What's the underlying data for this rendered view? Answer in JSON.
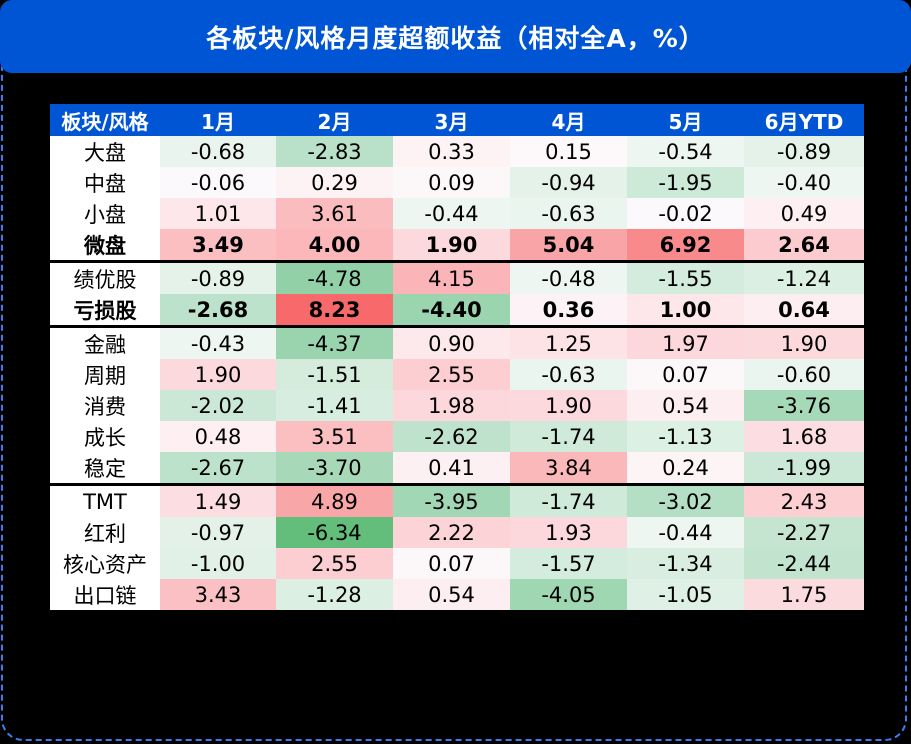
{
  "title": "各板块/风格月度超额收益（相对全A，%）",
  "table": {
    "headers": [
      "板块/风格",
      "1月",
      "2月",
      "3月",
      "4月",
      "5月",
      "6月YTD"
    ],
    "rows": [
      {
        "label": "大盘",
        "values": [
          "-0.68",
          "-2.83",
          "0.33",
          "0.15",
          "-0.54",
          "-0.89"
        ],
        "bold": false,
        "sep": false,
        "colors": [
          "#eaf4ef",
          "#b9e0c8",
          "#fdf3f5",
          "#fdf8fa",
          "#edf6f1",
          "#e5f2ea"
        ]
      },
      {
        "label": "中盘",
        "values": [
          "-0.06",
          "0.29",
          "0.09",
          "-0.94",
          "-1.95",
          "-0.40"
        ],
        "bold": false,
        "sep": false,
        "colors": [
          "#fbf9fb",
          "#fdf3f5",
          "#fcf8fa",
          "#e5f2ea",
          "#cde9d8",
          "#eef6f2"
        ]
      },
      {
        "label": "小盘",
        "values": [
          "1.01",
          "3.61",
          "-0.44",
          "-0.63",
          "-0.02",
          "0.49"
        ],
        "bold": false,
        "sep": false,
        "colors": [
          "#fde7ea",
          "#fbbcbf",
          "#eef6f2",
          "#ebf5ef",
          "#fbf9fb",
          "#fdeff2"
        ]
      },
      {
        "label": "微盘",
        "values": [
          "3.49",
          "4.00",
          "1.90",
          "5.04",
          "6.92",
          "2.64"
        ],
        "bold": true,
        "sep": false,
        "colors": [
          "#fbbfc2",
          "#fbb7ba",
          "#fcd9dd",
          "#f9a4a7",
          "#f88a8c",
          "#fccbcf"
        ]
      },
      {
        "label": "绩优股",
        "values": [
          "-0.89",
          "-4.78",
          "4.15",
          "-0.48",
          "-1.55",
          "-1.24"
        ],
        "bold": false,
        "sep": true,
        "colors": [
          "#e5f2ea",
          "#92d1a8",
          "#fbb4b7",
          "#eef6f2",
          "#d4ecdd",
          "#dbefe2"
        ]
      },
      {
        "label": "亏损股",
        "values": [
          "-2.68",
          "8.23",
          "-4.40",
          "0.36",
          "1.00",
          "0.64"
        ],
        "bold": true,
        "sep": false,
        "colors": [
          "#bde2cb",
          "#f8696b",
          "#9bd5b0",
          "#fdf2f5",
          "#fde7ea",
          "#fdeef1"
        ]
      },
      {
        "label": "金融",
        "values": [
          "-0.43",
          "-4.37",
          "0.90",
          "1.25",
          "1.97",
          "1.90"
        ],
        "bold": false,
        "sep": true,
        "colors": [
          "#eef6f2",
          "#9ad4af",
          "#fde9ec",
          "#fde2e6",
          "#fcd8dc",
          "#fcd9dd"
        ]
      },
      {
        "label": "周期",
        "values": [
          "1.90",
          "-1.51",
          "2.55",
          "-0.63",
          "0.07",
          "-0.60"
        ],
        "bold": false,
        "sep": false,
        "colors": [
          "#fcd9dd",
          "#d5ecdd",
          "#fccdd1",
          "#ebf5ef",
          "#fcf8fa",
          "#ebf5ef"
        ]
      },
      {
        "label": "消费",
        "values": [
          "-2.02",
          "-1.41",
          "1.98",
          "1.90",
          "0.54",
          "-3.76"
        ],
        "bold": false,
        "sep": false,
        "colors": [
          "#cbe8d6",
          "#d7ede0",
          "#fcd8dc",
          "#fcd9dd",
          "#fdeef1",
          "#a6d9b8"
        ]
      },
      {
        "label": "成长",
        "values": [
          "0.48",
          "3.51",
          "-2.62",
          "-1.74",
          "-1.13",
          "1.68"
        ],
        "bold": false,
        "sep": false,
        "colors": [
          "#fdeff2",
          "#fbbec1",
          "#bee2cc",
          "#d0eada",
          "#ddf0e4",
          "#fcdde1"
        ]
      },
      {
        "label": "稳定",
        "values": [
          "-2.67",
          "-3.70",
          "0.41",
          "3.84",
          "0.24",
          "-1.99"
        ],
        "bold": false,
        "sep": false,
        "colors": [
          "#bde2cb",
          "#a7d9b9",
          "#fdf0f3",
          "#fbb8bb",
          "#fdf4f6",
          "#cbe8d6"
        ]
      },
      {
        "label": "TMT",
        "values": [
          "1.49",
          "4.89",
          "-3.95",
          "-1.74",
          "-3.02",
          "2.43"
        ],
        "bold": false,
        "sep": true,
        "colors": [
          "#fcdee2",
          "#f9a6a9",
          "#a2d7b5",
          "#d0eada",
          "#b5dfc4",
          "#fccfd3"
        ]
      },
      {
        "label": "红利",
        "values": [
          "-0.97",
          "-6.34",
          "2.22",
          "1.93",
          "-0.44",
          "-2.27"
        ],
        "bold": false,
        "sep": false,
        "colors": [
          "#e3f1e8",
          "#63be7b",
          "#fcd3d7",
          "#fcd8dc",
          "#eef6f2",
          "#c5e5d1"
        ]
      },
      {
        "label": "核心资产",
        "values": [
          "-1.00",
          "2.55",
          "0.07",
          "-1.57",
          "-1.34",
          "-2.44"
        ],
        "bold": false,
        "sep": false,
        "colors": [
          "#e2f1e8",
          "#fccdd1",
          "#fcf8fa",
          "#d4ecdd",
          "#d9eee1",
          "#c2e4cf"
        ]
      },
      {
        "label": "出口链",
        "values": [
          "3.43",
          "-1.28",
          "0.54",
          "-4.05",
          "-1.05",
          "1.75"
        ],
        "bold": false,
        "sep": false,
        "colors": [
          "#fbc0c3",
          "#dbefe2",
          "#fdeef1",
          "#a0d7b3",
          "#dff0e6",
          "#fcdbdf"
        ]
      }
    ]
  },
  "colors": {
    "header_bg": "#0055d4",
    "header_text": "#ffffff",
    "frame_border": "#3a7ff0",
    "background": "#000000"
  }
}
